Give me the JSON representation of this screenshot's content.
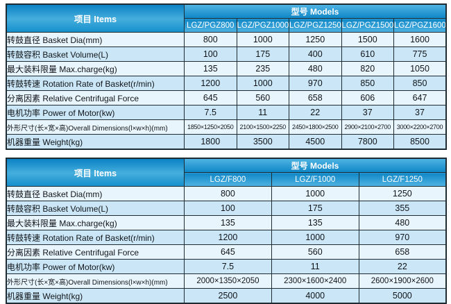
{
  "colors": {
    "header_gradient_top": "#0b82c4",
    "header_gradient_mid": "#45aedd",
    "header_gradient_bottom": "#1690cc",
    "band_light": "#4fb3e2",
    "band_dark": "#0f87c7",
    "row_light": "#e9f5fc",
    "row_medium": "#cbe7f7",
    "border": "#1f2b33",
    "header_text": "#ffffff",
    "body_text": "#101418",
    "page_bg": "#ffffff"
  },
  "tables": [
    {
      "items_header": "项目 Items",
      "models_header": "型号 Models",
      "models": [
        "LGZ/PGZ800",
        "LGZ/PGZ1000",
        "LGZ/PGZ1250",
        "LGZ/PGZ1500",
        "LGZ/PGZ1600"
      ],
      "rows": [
        {
          "label": "转鼓直径 Basket Dia(mm)",
          "values": [
            "800",
            "1000",
            "1250",
            "1500",
            "1600"
          ]
        },
        {
          "label": "转鼓容积 Basket Volume(L)",
          "values": [
            "100",
            "175",
            "400",
            "610",
            "775"
          ]
        },
        {
          "label": "最大装料限量 Max.charge(kg)",
          "values": [
            "135",
            "235",
            "480",
            "820",
            "1050"
          ]
        },
        {
          "label": "转鼓转速 Rotation Rate of Basket(r/min)",
          "values": [
            "1200",
            "1000",
            "970",
            "850",
            "850"
          ]
        },
        {
          "label": "分离因素 Relative Centrifugal Force",
          "values": [
            "645",
            "560",
            "658",
            "606",
            "647"
          ]
        },
        {
          "label": "电机功率 Power of Motor(kw)",
          "values": [
            "7.5",
            "11",
            "22",
            "37",
            "37"
          ]
        },
        {
          "label": "外形尺寸(长×宽×高)Overall Dimensions(l×w×h)(mm)",
          "values": [
            "1850×1250×2050",
            "2100×1500×2250",
            "2450×1800×2500",
            "2900×2100×2700",
            "3000×2200×2700"
          ]
        },
        {
          "label": "机器重量 Weight(kg)",
          "values": [
            "1800",
            "3500",
            "4500",
            "7800",
            "8500"
          ]
        }
      ]
    },
    {
      "items_header": "项目 Items",
      "models_header": "型号 Models",
      "models": [
        "LGZ/F800",
        "LGZ/F1000",
        "LGZ/F1250"
      ],
      "rows": [
        {
          "label": "转鼓直径 Basket Dia(mm)",
          "values": [
            "800",
            "1000",
            "1250"
          ]
        },
        {
          "label": "转鼓容积 Basket Volume(L)",
          "values": [
            "100",
            "175",
            "355"
          ]
        },
        {
          "label": "最大装料限量 Max.charge(kg)",
          "values": [
            "135",
            "135",
            "480"
          ]
        },
        {
          "label": "转鼓转速 Rotation Rate of Basket(r/min)",
          "values": [
            "1200",
            "1000",
            "970"
          ]
        },
        {
          "label": "分离因素 Relative Centrifugal Force",
          "values": [
            "645",
            "560",
            "658"
          ]
        },
        {
          "label": "电机功率 Power of Motor(kw)",
          "values": [
            "7.5",
            "11",
            "22"
          ]
        },
        {
          "label": "外形尺寸(长×宽×高)Overall Dimensions(l×w×h)(mm)",
          "values": [
            "2000×1350×2050",
            "2300×1600×2400",
            "2600×1900×2600"
          ]
        },
        {
          "label": "机器重量 Weight(kg)",
          "values": [
            "2500",
            "4000",
            "5000"
          ]
        }
      ]
    }
  ]
}
